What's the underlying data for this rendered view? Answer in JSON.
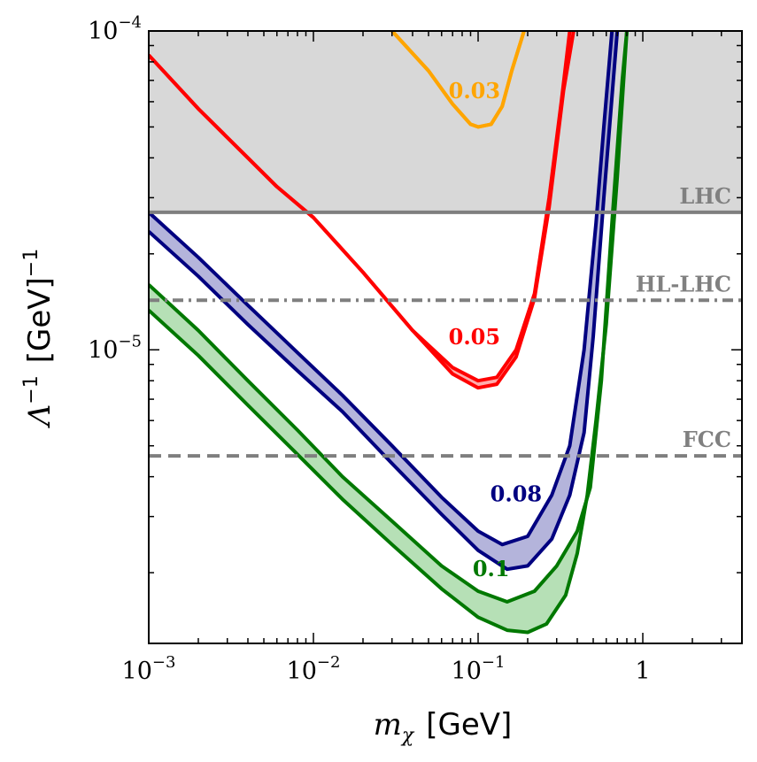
{
  "chart_data": {
    "type": "line",
    "title": "",
    "xlabel_symbol": "m",
    "xlabel_sub": "χ",
    "xlabel_unit": "[GeV]",
    "ylabel_symbol": "Λ",
    "ylabel_exp": "−1",
    "ylabel_unit": "[GeV]",
    "ylabel_unit_exp": "−1",
    "x_scale": "log",
    "y_scale": "log",
    "xlim": [
      0.001,
      4.0
    ],
    "ylim": [
      1.2e-06,
      0.0001
    ],
    "x_ticks": [
      {
        "base": "10",
        "exp": "−3"
      },
      {
        "base": "10",
        "exp": "−2"
      },
      {
        "base": "10",
        "exp": "−1"
      },
      {
        "base": "1",
        "exp": ""
      }
    ],
    "y_ticks": [
      {
        "base": "10",
        "exp": "−5"
      },
      {
        "base": "10",
        "exp": "−4"
      }
    ],
    "limits": [
      {
        "name": "LHC",
        "value": 2.7e-05,
        "style": "solid",
        "color": "#7f7f7f",
        "shaded_above": true,
        "shade": "#d8d8d8"
      },
      {
        "name": "HL-LHC",
        "value": 1.43e-05,
        "style": "dashdot",
        "color": "#7f7f7f"
      },
      {
        "name": "FCC",
        "value": 4.65e-06,
        "style": "dashed",
        "color": "#7f7f7f"
      }
    ],
    "series": [
      {
        "name": "0.03",
        "color": "#ffa500",
        "fill": "#ffa500",
        "upper": [
          [
            0.03,
            0.0001
          ],
          [
            0.05,
            7.5e-05
          ],
          [
            0.07,
            5.9e-05
          ],
          [
            0.09,
            5.1e-05
          ],
          [
            0.1,
            5e-05
          ],
          [
            0.12,
            5.1e-05
          ],
          [
            0.14,
            5.8e-05
          ],
          [
            0.16,
            7.5e-05
          ],
          [
            0.19,
            0.0001
          ]
        ],
        "lower": [
          [
            0.03,
            0.0001
          ],
          [
            0.05,
            7.5e-05
          ],
          [
            0.07,
            5.9e-05
          ],
          [
            0.09,
            5.1e-05
          ],
          [
            0.1,
            5e-05
          ],
          [
            0.12,
            5.1e-05
          ],
          [
            0.14,
            5.8e-05
          ],
          [
            0.16,
            7.5e-05
          ],
          [
            0.19,
            0.0001
          ]
        ]
      },
      {
        "name": "0.05",
        "color": "#ff0000",
        "fill": "#ff8080",
        "upper": [
          [
            0.001,
            8.4e-05
          ],
          [
            0.002,
            5.7e-05
          ],
          [
            0.004,
            4e-05
          ],
          [
            0.006,
            3.25e-05
          ],
          [
            0.01,
            2.6e-05
          ],
          [
            0.02,
            1.75e-05
          ],
          [
            0.04,
            1.15e-05
          ],
          [
            0.07,
            8.8e-06
          ],
          [
            0.1,
            8e-06
          ],
          [
            0.13,
            8.2e-06
          ],
          [
            0.17,
            1e-05
          ],
          [
            0.22,
            1.5e-05
          ],
          [
            0.27,
            3e-05
          ],
          [
            0.32,
            6e-05
          ],
          [
            0.36,
            0.0001
          ]
        ],
        "lower": [
          [
            0.001,
            8.4e-05
          ],
          [
            0.002,
            5.7e-05
          ],
          [
            0.004,
            4e-05
          ],
          [
            0.006,
            3.25e-05
          ],
          [
            0.01,
            2.6e-05
          ],
          [
            0.02,
            1.75e-05
          ],
          [
            0.04,
            1.15e-05
          ],
          [
            0.07,
            8.4e-06
          ],
          [
            0.1,
            7.6e-06
          ],
          [
            0.13,
            7.8e-06
          ],
          [
            0.17,
            9.5e-06
          ],
          [
            0.22,
            1.45e-05
          ],
          [
            0.27,
            2.8e-05
          ],
          [
            0.33,
            6.5e-05
          ],
          [
            0.38,
            0.0001
          ]
        ]
      },
      {
        "name": "0.08",
        "color": "#000080",
        "fill": "#8c8cc8",
        "upper": [
          [
            0.001,
            2.7e-05
          ],
          [
            0.002,
            1.95e-05
          ],
          [
            0.004,
            1.38e-05
          ],
          [
            0.008,
            9.8e-06
          ],
          [
            0.015,
            7.2e-06
          ],
          [
            0.03,
            5e-06
          ],
          [
            0.06,
            3.45e-06
          ],
          [
            0.1,
            2.7e-06
          ],
          [
            0.14,
            2.45e-06
          ],
          [
            0.2,
            2.6e-06
          ],
          [
            0.28,
            3.5e-06
          ],
          [
            0.36,
            5e-06
          ],
          [
            0.44,
            1e-05
          ],
          [
            0.52,
            2.5e-05
          ],
          [
            0.58,
            5e-05
          ],
          [
            0.65,
            0.0001
          ]
        ],
        "lower": [
          [
            0.001,
            2.35e-05
          ],
          [
            0.002,
            1.7e-05
          ],
          [
            0.004,
            1.2e-05
          ],
          [
            0.008,
            8.6e-06
          ],
          [
            0.015,
            6.4e-06
          ],
          [
            0.03,
            4.4e-06
          ],
          [
            0.06,
            3.05e-06
          ],
          [
            0.1,
            2.35e-06
          ],
          [
            0.15,
            2.05e-06
          ],
          [
            0.2,
            2.1e-06
          ],
          [
            0.28,
            2.55e-06
          ],
          [
            0.36,
            3.5e-06
          ],
          [
            0.44,
            5.5e-06
          ],
          [
            0.5,
            1.1e-05
          ],
          [
            0.58,
            3e-05
          ],
          [
            0.7,
            0.0001
          ]
        ]
      },
      {
        "name": "0.1",
        "color": "#007800",
        "fill": "#8fd08f",
        "upper": [
          [
            0.001,
            1.6e-05
          ],
          [
            0.002,
            1.15e-05
          ],
          [
            0.004,
            8e-06
          ],
          [
            0.008,
            5.6e-06
          ],
          [
            0.015,
            4e-06
          ],
          [
            0.03,
            2.9e-06
          ],
          [
            0.06,
            2.1e-06
          ],
          [
            0.1,
            1.75e-06
          ],
          [
            0.15,
            1.62e-06
          ],
          [
            0.22,
            1.75e-06
          ],
          [
            0.3,
            2.1e-06
          ],
          [
            0.4,
            2.7e-06
          ],
          [
            0.48,
            3.7e-06
          ],
          [
            0.56,
            8e-06
          ],
          [
            0.65,
            2.5e-05
          ],
          [
            0.75,
            7e-05
          ],
          [
            0.8,
            0.0001
          ]
        ],
        "lower": [
          [
            0.001,
            1.33e-05
          ],
          [
            0.002,
            9.6e-06
          ],
          [
            0.004,
            6.7e-06
          ],
          [
            0.008,
            4.7e-06
          ],
          [
            0.015,
            3.4e-06
          ],
          [
            0.03,
            2.45e-06
          ],
          [
            0.06,
            1.78e-06
          ],
          [
            0.1,
            1.45e-06
          ],
          [
            0.15,
            1.32e-06
          ],
          [
            0.2,
            1.3e-06
          ],
          [
            0.26,
            1.38e-06
          ],
          [
            0.34,
            1.7e-06
          ],
          [
            0.4,
            2.3e-06
          ],
          [
            0.46,
            3.5e-06
          ],
          [
            0.52,
            6e-06
          ],
          [
            0.6,
            1.2e-05
          ],
          [
            0.7,
            3.5e-05
          ],
          [
            0.8,
            0.0001
          ]
        ]
      }
    ],
    "series_labels": [
      {
        "text": "0.03",
        "x": 0.095,
        "y": 6.15e-05
      },
      {
        "text": "0.05",
        "x": 0.095,
        "y": 1.04e-05
      },
      {
        "text": "0.08",
        "x": 0.17,
        "y": 3.35e-06
      },
      {
        "text": "0.1",
        "x": 0.12,
        "y": 1.95e-06
      }
    ]
  }
}
